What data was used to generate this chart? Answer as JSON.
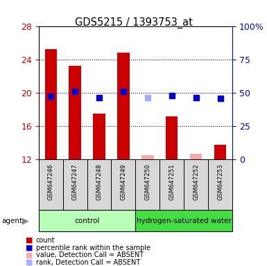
{
  "title": "GDS5215 / 1393753_at",
  "samples": [
    "GSM647246",
    "GSM647247",
    "GSM647248",
    "GSM647249",
    "GSM647250",
    "GSM647251",
    "GSM647252",
    "GSM647253"
  ],
  "count_values": [
    25.3,
    23.3,
    17.5,
    24.9,
    null,
    17.2,
    null,
    13.8
  ],
  "count_absent_values": [
    null,
    null,
    null,
    null,
    12.55,
    null,
    12.7,
    null
  ],
  "rank_values_pct": [
    47.5,
    51.5,
    46.5,
    51.0,
    null,
    48.0,
    46.5,
    46.0
  ],
  "rank_absent_values_pct": [
    null,
    null,
    null,
    null,
    46.5,
    null,
    null,
    null
  ],
  "ylim_left": [
    12,
    28
  ],
  "ylim_right": [
    0,
    100
  ],
  "yticks_left": [
    12,
    16,
    20,
    24,
    28
  ],
  "yticks_right": [
    0,
    25,
    50,
    75,
    100
  ],
  "ytick_labels_right": [
    "0",
    "25",
    "50",
    "75",
    "100%"
  ],
  "left_tick_color": "#cc0000",
  "right_tick_color": "#0000cc",
  "bar_color": "#cc0000",
  "bar_absent_color": "#ffaaaa",
  "rank_color": "#0000cc",
  "rank_absent_color": "#aaaaff",
  "sample_bg_color": "#d8d8d8",
  "control_color": "#b8ffb8",
  "hw_color": "#44dd44",
  "bar_width": 0.5,
  "marker_size": 6,
  "groups_info": [
    {
      "label": "control",
      "start": 0,
      "end": 4,
      "color": "#b8ffb8"
    },
    {
      "label": "hydrogen-saturated water",
      "start": 4,
      "end": 8,
      "color": "#44dd44"
    }
  ],
  "legend_labels": [
    "count",
    "percentile rank within the sample",
    "value, Detection Call = ABSENT",
    "rank, Detection Call = ABSENT"
  ],
  "legend_colors": [
    "#cc0000",
    "#0000cc",
    "#ffaaaa",
    "#aaaaff"
  ]
}
